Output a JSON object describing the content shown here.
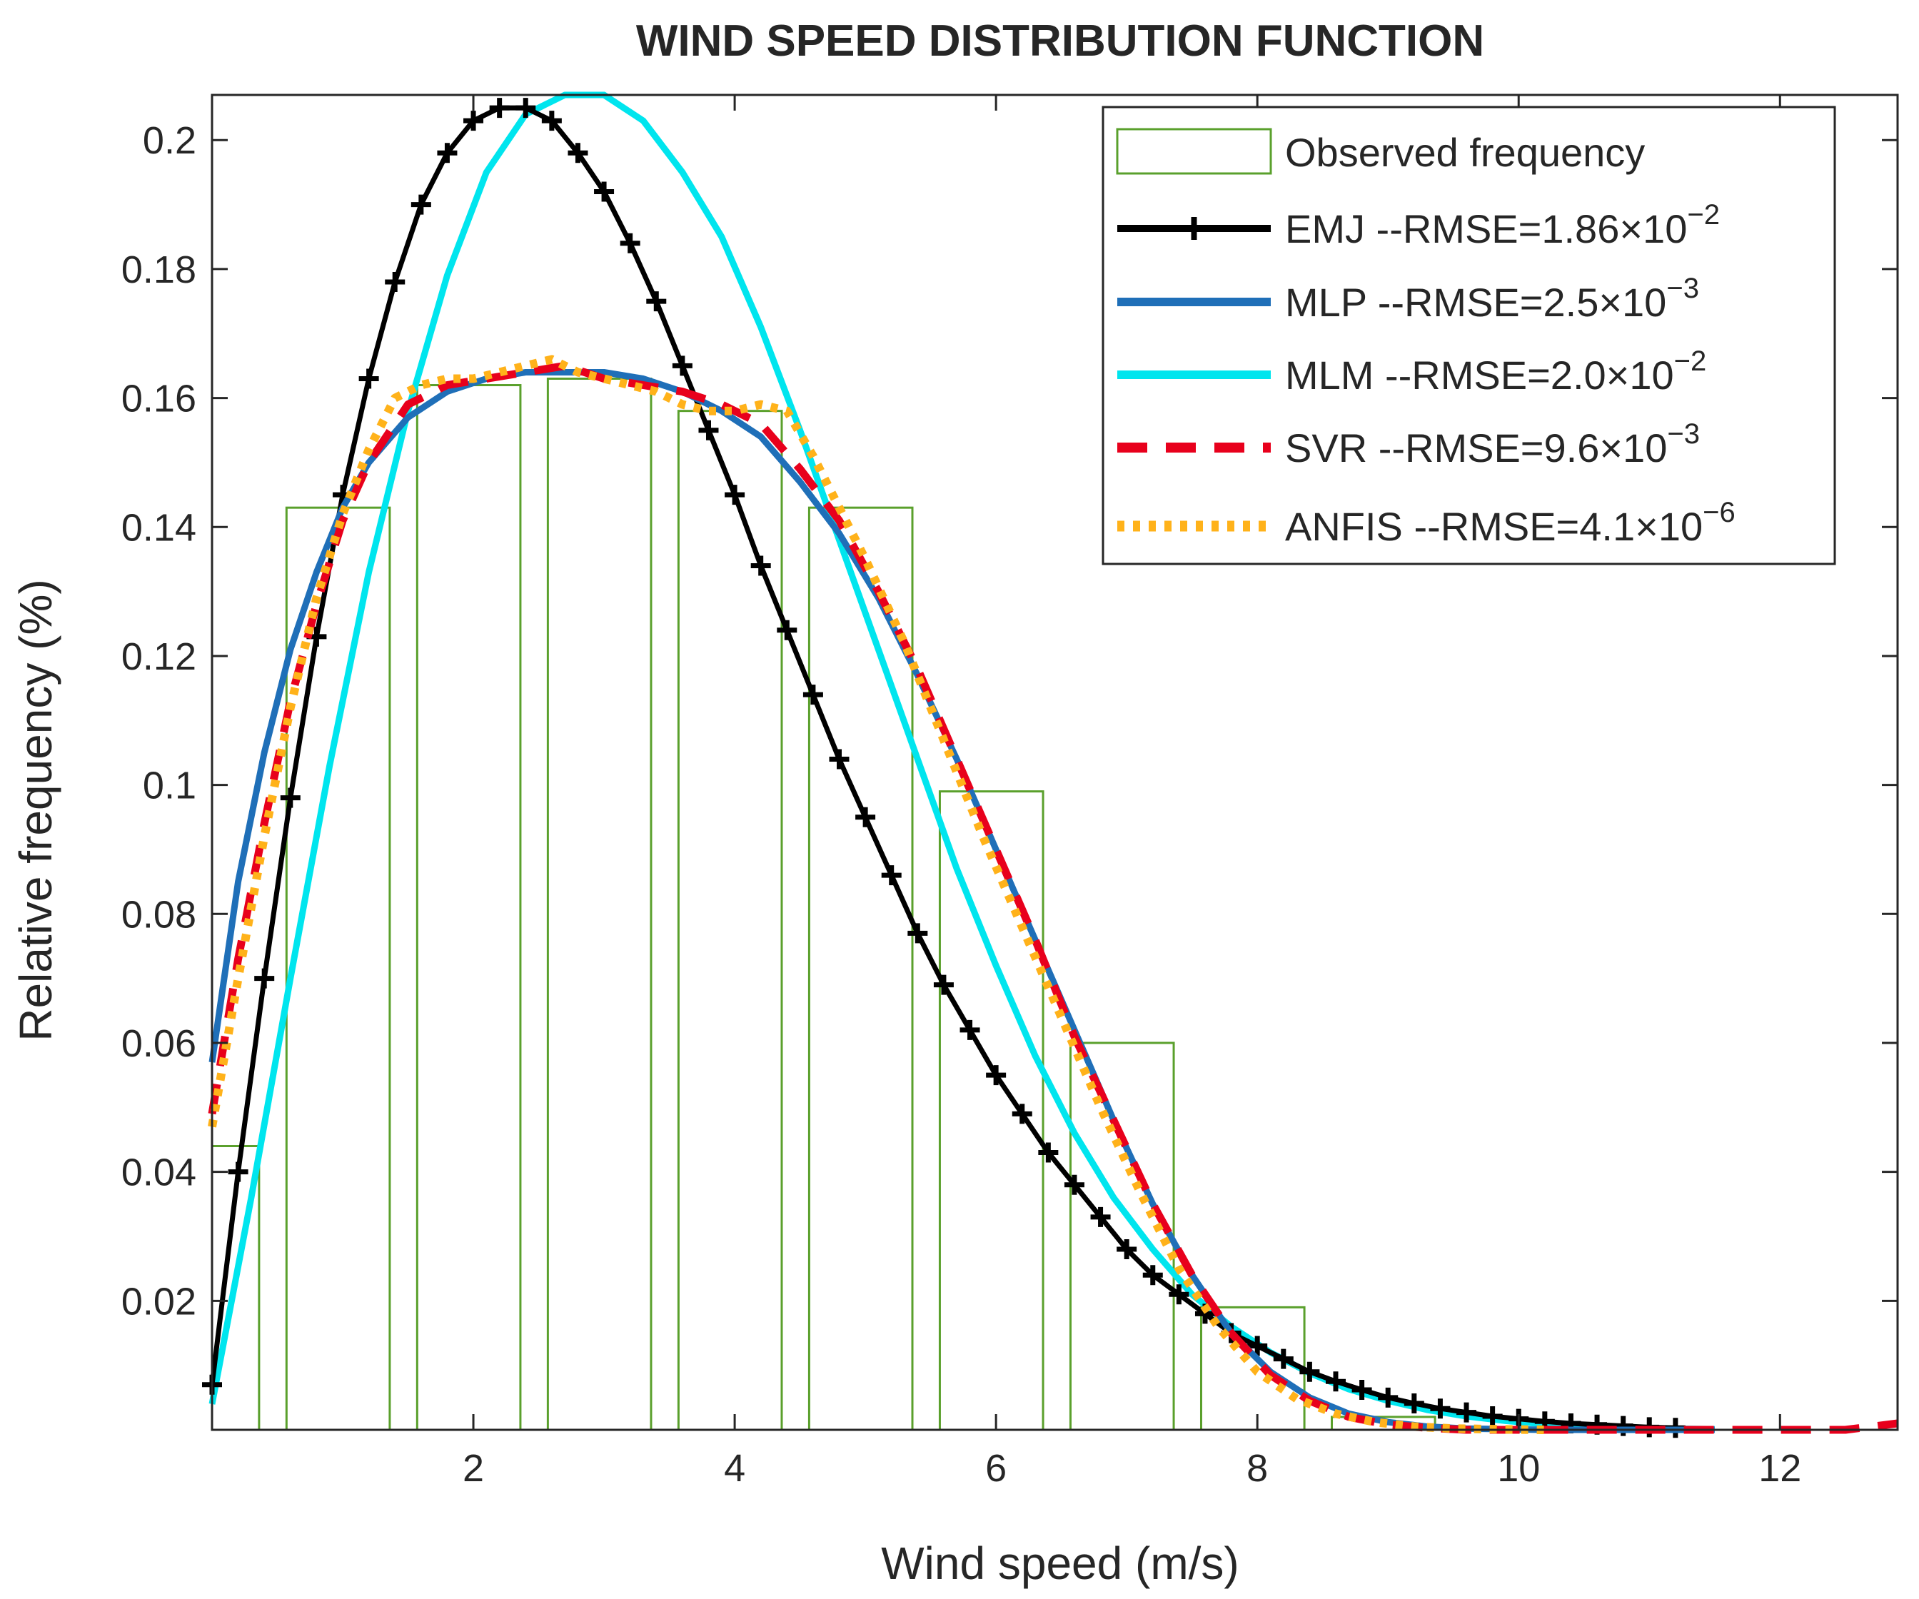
{
  "chart_data": {
    "type": "line",
    "title": "WIND SPEED DISTRIBUTION FUNCTION",
    "xlabel": "Wind speed (m/s)",
    "ylabel": "Relative frequency (%)",
    "xlim": [
      0,
      12.9
    ],
    "ylim": [
      0,
      0.207
    ],
    "xticks": [
      2,
      4,
      6,
      8,
      10,
      12
    ],
    "yticks": [
      0.02,
      0.04,
      0.06,
      0.08,
      0.1,
      0.12,
      0.14,
      0.16,
      0.18,
      0.2
    ],
    "xtick_labels": [
      "2",
      "4",
      "6",
      "8",
      "10",
      "12"
    ],
    "ytick_labels": [
      "0.02",
      "0.04",
      "0.06",
      "0.08",
      "0.1",
      "0.12",
      "0.14",
      "0.16",
      "0.18",
      "0.2"
    ],
    "grid": false,
    "legend_position": "top-right",
    "histogram": {
      "name": "Observed frequency",
      "color": "#5aa02c",
      "bins": [
        {
          "x0": 0.0,
          "x1": 0.36,
          "y": 0.044
        },
        {
          "x0": 0.57,
          "x1": 1.36,
          "y": 0.143
        },
        {
          "x0": 1.57,
          "x1": 2.36,
          "y": 0.162
        },
        {
          "x0": 2.57,
          "x1": 3.36,
          "y": 0.163
        },
        {
          "x0": 3.57,
          "x1": 4.36,
          "y": 0.158
        },
        {
          "x0": 4.57,
          "x1": 5.36,
          "y": 0.143
        },
        {
          "x0": 5.57,
          "x1": 6.36,
          "y": 0.099
        },
        {
          "x0": 6.57,
          "x1": 7.36,
          "y": 0.06
        },
        {
          "x0": 7.57,
          "x1": 8.36,
          "y": 0.019
        },
        {
          "x0": 8.57,
          "x1": 9.36,
          "y": 0.002
        }
      ]
    },
    "series": [
      {
        "name": "EMJ",
        "legend_text": "EMJ --RMSE=1.86×10",
        "rmse_exponent": "−2",
        "color": "#000000",
        "style": "solid-plus",
        "x": [
          0,
          0.2,
          0.4,
          0.6,
          0.8,
          1.0,
          1.2,
          1.4,
          1.6,
          1.8,
          2.0,
          2.2,
          2.4,
          2.6,
          2.8,
          3.0,
          3.2,
          3.4,
          3.6,
          3.8,
          4.0,
          4.2,
          4.4,
          4.6,
          4.8,
          5.0,
          5.2,
          5.4,
          5.6,
          5.8,
          6.0,
          6.2,
          6.4,
          6.6,
          6.8,
          7.0,
          7.2,
          7.4,
          7.6,
          7.8,
          8.0,
          8.2,
          8.4,
          8.6,
          8.8,
          9.0,
          9.2,
          9.4,
          9.6,
          9.8,
          10.0,
          10.2,
          10.4,
          10.6,
          10.8,
          11.0,
          11.2
        ],
        "y": [
          0.007,
          0.04,
          0.07,
          0.098,
          0.123,
          0.145,
          0.163,
          0.178,
          0.19,
          0.198,
          0.203,
          0.205,
          0.205,
          0.203,
          0.198,
          0.192,
          0.184,
          0.175,
          0.165,
          0.155,
          0.145,
          0.134,
          0.124,
          0.114,
          0.104,
          0.095,
          0.086,
          0.077,
          0.069,
          0.062,
          0.055,
          0.049,
          0.043,
          0.038,
          0.033,
          0.028,
          0.024,
          0.021,
          0.018,
          0.015,
          0.013,
          0.011,
          0.009,
          0.0075,
          0.0062,
          0.005,
          0.0041,
          0.0033,
          0.0027,
          0.0021,
          0.0017,
          0.0013,
          0.001,
          0.0008,
          0.0006,
          0.0004,
          0.0003
        ]
      },
      {
        "name": "MLP",
        "legend_text": "MLP --RMSE=2.5×10",
        "rmse_exponent": "−3",
        "color": "#1f6fb8",
        "style": "solid",
        "x": [
          0,
          0.2,
          0.4,
          0.6,
          0.8,
          1.0,
          1.2,
          1.5,
          1.8,
          2.1,
          2.4,
          2.7,
          3.0,
          3.3,
          3.6,
          3.9,
          4.2,
          4.5,
          4.8,
          5.1,
          5.4,
          5.7,
          6.0,
          6.3,
          6.6,
          6.9,
          7.2,
          7.5,
          7.8,
          8.1,
          8.4,
          8.7,
          9.0,
          9.3,
          9.6,
          9.9,
          10.2,
          10.5,
          10.8,
          11.1,
          11.5
        ],
        "y": [
          0.057,
          0.085,
          0.105,
          0.121,
          0.133,
          0.143,
          0.15,
          0.157,
          0.161,
          0.163,
          0.164,
          0.164,
          0.164,
          0.163,
          0.161,
          0.158,
          0.154,
          0.147,
          0.139,
          0.129,
          0.117,
          0.104,
          0.09,
          0.076,
          0.062,
          0.048,
          0.035,
          0.024,
          0.015,
          0.009,
          0.005,
          0.0025,
          0.0012,
          0.0005,
          0.0002,
          0.0001,
          0.0,
          0.0,
          0.0,
          0.0,
          0.0
        ]
      },
      {
        "name": "MLM",
        "legend_text": "MLM --RMSE=2.0×10",
        "rmse_exponent": "−2",
        "color": "#00e5ee",
        "style": "solid",
        "x": [
          0,
          0.3,
          0.6,
          0.9,
          1.2,
          1.5,
          1.8,
          2.1,
          2.4,
          2.7,
          3.0,
          3.3,
          3.6,
          3.9,
          4.2,
          4.5,
          4.8,
          5.1,
          5.4,
          5.7,
          6.0,
          6.3,
          6.6,
          6.9,
          7.2,
          7.5,
          7.8,
          8.1,
          8.4,
          8.7,
          9.0,
          9.3,
          9.6,
          9.9,
          10.2,
          10.5,
          10.8,
          11.1,
          11.5
        ],
        "y": [
          0.004,
          0.036,
          0.07,
          0.103,
          0.133,
          0.158,
          0.179,
          0.195,
          0.204,
          0.207,
          0.207,
          0.203,
          0.195,
          0.185,
          0.171,
          0.155,
          0.138,
          0.121,
          0.104,
          0.087,
          0.072,
          0.058,
          0.046,
          0.036,
          0.028,
          0.021,
          0.016,
          0.012,
          0.0088,
          0.0063,
          0.0045,
          0.0031,
          0.0021,
          0.0014,
          0.0009,
          0.0006,
          0.0003,
          0.0002,
          0.0001
        ]
      },
      {
        "name": "SVR",
        "legend_text": "SVR --RMSE=9.6×10",
        "rmse_exponent": "−3",
        "color": "#e8001c",
        "style": "dashed",
        "x": [
          0,
          0.2,
          0.4,
          0.6,
          0.8,
          1.0,
          1.2,
          1.5,
          1.8,
          2.1,
          2.4,
          2.7,
          3.0,
          3.3,
          3.6,
          3.9,
          4.2,
          4.5,
          4.8,
          5.1,
          5.4,
          5.7,
          6.0,
          6.3,
          6.6,
          6.9,
          7.2,
          7.5,
          7.8,
          8.1,
          8.4,
          8.7,
          9.0,
          9.3,
          9.6,
          10.0,
          10.5,
          11.0,
          11.5,
          12.0,
          12.5,
          12.9
        ],
        "y": [
          0.049,
          0.073,
          0.094,
          0.113,
          0.128,
          0.141,
          0.15,
          0.159,
          0.162,
          0.163,
          0.164,
          0.165,
          0.163,
          0.162,
          0.161,
          0.159,
          0.156,
          0.149,
          0.141,
          0.13,
          0.118,
          0.104,
          0.09,
          0.076,
          0.061,
          0.048,
          0.035,
          0.024,
          0.015,
          0.0085,
          0.0045,
          0.002,
          0.0008,
          0.0003,
          0.0,
          0.0,
          0.0,
          0.0,
          0.0,
          0.0,
          0.0,
          0.001
        ]
      },
      {
        "name": "ANFIS",
        "legend_text": "ANFIS --RMSE=4.1×10",
        "rmse_exponent": "−6",
        "color": "#ffb21a",
        "style": "dotted",
        "x": [
          0,
          0.2,
          0.4,
          0.6,
          0.8,
          1.0,
          1.2,
          1.4,
          1.6,
          1.8,
          2.0,
          2.2,
          2.4,
          2.6,
          2.8,
          3.0,
          3.2,
          3.4,
          3.6,
          3.8,
          4.0,
          4.2,
          4.4,
          4.6,
          4.8,
          5.0,
          5.3,
          5.6,
          5.9,
          6.2,
          6.5,
          6.8,
          7.1,
          7.4,
          7.7,
          8.0,
          8.3,
          8.6,
          8.9,
          9.2,
          9.5,
          9.8,
          10.2
        ],
        "y": [
          0.047,
          0.07,
          0.092,
          0.112,
          0.129,
          0.142,
          0.152,
          0.16,
          0.162,
          0.163,
          0.163,
          0.164,
          0.165,
          0.166,
          0.164,
          0.163,
          0.162,
          0.161,
          0.159,
          0.158,
          0.158,
          0.159,
          0.158,
          0.151,
          0.143,
          0.135,
          0.122,
          0.107,
          0.092,
          0.078,
          0.064,
          0.05,
          0.037,
          0.025,
          0.016,
          0.009,
          0.0048,
          0.0025,
          0.0012,
          0.0005,
          0.0002,
          0.0001,
          0.0
        ]
      }
    ]
  }
}
